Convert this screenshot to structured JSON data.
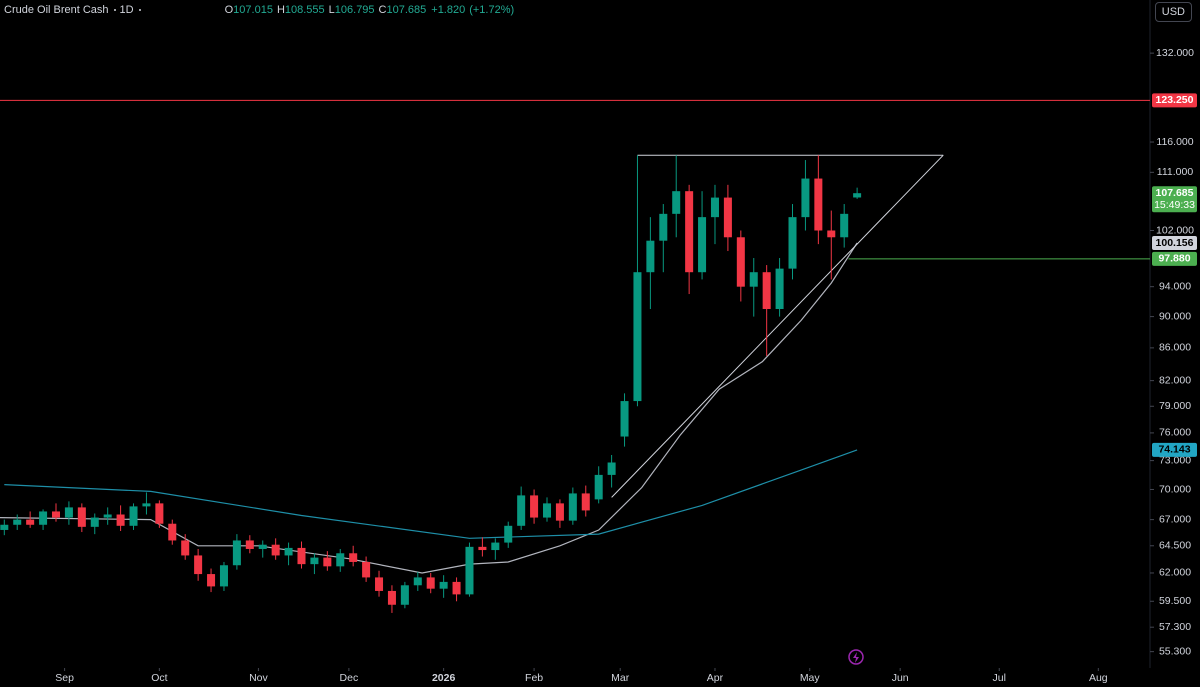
{
  "chart_data": {
    "type": "candlestick",
    "symbol": "Crude Oil Brent Cash",
    "interval": "1D",
    "currency": "USD",
    "ohlc_header": [
      {
        "key": "O",
        "value": 107.015
      },
      {
        "key": "H",
        "value": 108.555
      },
      {
        "key": "L",
        "value": 106.795
      },
      {
        "key": "C",
        "value": 107.685
      }
    ],
    "change": {
      "value": 1.82,
      "label": "+1.820"
    },
    "change_percent": {
      "value": 1.72,
      "label": "(+1.72%)"
    },
    "log_scale": true,
    "xlim": [
      -15,
      252
    ],
    "xticks": [
      {
        "value": 0,
        "label": "Sep"
      },
      {
        "value": 22,
        "label": "Oct"
      },
      {
        "value": 45,
        "label": "Nov"
      },
      {
        "value": 66,
        "label": "Dec"
      },
      {
        "value": 88,
        "label": "2026"
      },
      {
        "value": 109,
        "label": "Feb"
      },
      {
        "value": 129,
        "label": "Mar"
      },
      {
        "value": 151,
        "label": "Apr"
      },
      {
        "value": 173,
        "label": "May"
      },
      {
        "value": 194,
        "label": "Jun"
      },
      {
        "value": 217,
        "label": "Jul"
      },
      {
        "value": 240,
        "label": "Aug"
      }
    ],
    "ylim": [
      54,
      142.6
    ],
    "yticks": [
      {
        "value": 55.3,
        "label": "55.300"
      },
      {
        "value": 57.3,
        "label": "57.300"
      },
      {
        "value": 59.5,
        "label": "59.500"
      },
      {
        "value": 62,
        "label": "62.000"
      },
      {
        "value": 64.5,
        "label": "64.500"
      },
      {
        "value": 67,
        "label": "67.000"
      },
      {
        "value": 70,
        "label": "70.000"
      },
      {
        "value": 73,
        "label": "73.000"
      },
      {
        "value": 76,
        "label": "76.000"
      },
      {
        "value": 79,
        "label": "79.000"
      },
      {
        "value": 82,
        "label": "82.000"
      },
      {
        "value": 86,
        "label": "86.000"
      },
      {
        "value": 90,
        "label": "90.000"
      },
      {
        "value": 94,
        "label": "94.000"
      },
      {
        "value": 102,
        "label": "102.000"
      },
      {
        "value": 111,
        "label": "111.000"
      },
      {
        "value": 116,
        "label": "116.000"
      },
      {
        "value": 132,
        "label": "132.000"
      }
    ],
    "up_color": "#089981",
    "down_color": "#f23645",
    "candles": {
      "x": [
        -14,
        -11,
        -8,
        -5,
        -2,
        1,
        4,
        7,
        10,
        13,
        16,
        19,
        22,
        25,
        28,
        31,
        34,
        37,
        40,
        43,
        46,
        49,
        52,
        55,
        58,
        61,
        64,
        67,
        70,
        73,
        76,
        79,
        82,
        85,
        88,
        91,
        94,
        97,
        100,
        103,
        106,
        109,
        112,
        115,
        118,
        121,
        124,
        127,
        130,
        133,
        136,
        139,
        142,
        145,
        148,
        151,
        154,
        157,
        160,
        163,
        166,
        169,
        172,
        175,
        178,
        181,
        184
      ],
      "ohlc": [
        [
          66,
          67,
          65.5,
          66.5
        ],
        [
          66.5,
          67.5,
          66,
          67
        ],
        [
          67,
          67.8,
          66.2,
          66.5
        ],
        [
          66.5,
          68,
          66,
          67.8
        ],
        [
          67.8,
          68.6,
          66.8,
          67.2
        ],
        [
          67.2,
          68.8,
          66.5,
          68.2
        ],
        [
          68.2,
          68.6,
          65.8,
          66.3
        ],
        [
          66.3,
          67.6,
          65.6,
          67.2
        ],
        [
          67.2,
          68.2,
          66.5,
          67.5
        ],
        [
          67.5,
          68.4,
          65.9,
          66.4
        ],
        [
          66.4,
          68.6,
          66,
          68.3
        ],
        [
          68.3,
          69.7,
          67.5,
          68.6
        ],
        [
          68.6,
          68.9,
          66.2,
          66.6
        ],
        [
          66.6,
          67,
          64.6,
          65
        ],
        [
          65,
          65.6,
          63.2,
          63.6
        ],
        [
          63.6,
          64.2,
          61.3,
          61.9
        ],
        [
          61.9,
          62.4,
          60.3,
          60.8
        ],
        [
          60.8,
          63,
          60.4,
          62.7
        ],
        [
          62.7,
          65.6,
          62.3,
          65
        ],
        [
          65,
          65.5,
          63.8,
          64.2
        ],
        [
          64.2,
          65,
          63.4,
          64.6
        ],
        [
          64.6,
          65.2,
          63.2,
          63.6
        ],
        [
          63.6,
          64.8,
          62.7,
          64.3
        ],
        [
          64.3,
          64.9,
          62.4,
          62.8
        ],
        [
          62.8,
          63.8,
          61.9,
          63.4
        ],
        [
          63.4,
          64,
          62.2,
          62.6
        ],
        [
          62.6,
          64.2,
          62.1,
          63.8
        ],
        [
          63.8,
          64.5,
          62.6,
          63
        ],
        [
          63,
          63.5,
          61.2,
          61.6
        ],
        [
          61.6,
          62.2,
          59.9,
          60.4
        ],
        [
          60.4,
          60.9,
          58.5,
          59.2
        ],
        [
          59.2,
          61.2,
          58.9,
          60.9
        ],
        [
          60.9,
          62.1,
          60.4,
          61.6
        ],
        [
          61.6,
          62,
          60.2,
          60.6
        ],
        [
          60.6,
          61.8,
          59.8,
          61.2
        ],
        [
          61.2,
          61.6,
          59.5,
          60.1
        ],
        [
          60.1,
          64.8,
          59.9,
          64.4
        ],
        [
          64.4,
          65.3,
          63.5,
          64.1
        ],
        [
          64.1,
          65.2,
          63.2,
          64.8
        ],
        [
          64.8,
          66.8,
          64.3,
          66.4
        ],
        [
          66.4,
          70.3,
          66,
          69.4
        ],
        [
          69.4,
          70,
          66.6,
          67.2
        ],
        [
          67.2,
          69.2,
          66.8,
          68.6
        ],
        [
          68.6,
          69,
          66.2,
          66.9
        ],
        [
          66.9,
          70.2,
          66.5,
          69.6
        ],
        [
          69.6,
          70.4,
          67.3,
          67.9
        ],
        [
          69,
          72.4,
          68.6,
          71.5
        ],
        [
          71.5,
          73.6,
          70.2,
          72.8
        ],
        [
          75.6,
          80.5,
          74.5,
          79.6
        ],
        [
          79.6,
          113.8,
          79,
          96
        ],
        [
          96,
          104,
          91,
          100.5
        ],
        [
          100.5,
          106,
          96,
          104.5
        ],
        [
          104.5,
          113.8,
          101,
          108
        ],
        [
          108,
          109,
          93,
          96
        ],
        [
          96,
          108,
          95,
          104
        ],
        [
          104,
          109,
          100,
          107
        ],
        [
          107,
          109,
          99,
          101
        ],
        [
          101,
          102,
          92,
          94
        ],
        [
          94,
          98,
          90,
          96
        ],
        [
          96,
          97,
          85,
          91
        ],
        [
          91,
          98,
          90,
          96.5
        ],
        [
          96.5,
          106,
          95,
          104
        ],
        [
          104,
          113,
          102,
          110
        ],
        [
          110,
          113.8,
          100,
          102
        ],
        [
          102,
          105,
          95,
          101
        ],
        [
          101,
          106,
          99.5,
          104.5
        ],
        [
          107.015,
          108.555,
          106.795,
          107.685
        ]
      ]
    },
    "series": [
      {
        "color": "#b2b5be",
        "x": [
          -15,
          20,
          31,
          45,
          66,
          83,
          94,
          103,
          115,
          124,
          134,
          143,
          152,
          162,
          171,
          178,
          184
        ],
        "values": [
          67.2,
          67,
          64.5,
          64.5,
          63.3,
          62,
          62.8,
          63,
          64.5,
          66,
          70.2,
          75.8,
          81,
          84.3,
          89.5,
          94.5,
          100.156
        ]
      },
      {
        "color": "#1e8fa8",
        "x": [
          -14,
          20,
          55,
          94,
          124,
          148,
          171,
          184
        ],
        "values": [
          70.5,
          69.8,
          67.4,
          65.2,
          65.6,
          68.4,
          72,
          74.143
        ]
      }
    ],
    "hlines": [
      {
        "value": 123.25,
        "color": "#f23645",
        "from": -15
      },
      {
        "value": 97.88,
        "color": "#4caf50",
        "from": 182
      }
    ],
    "trendlines": [
      {
        "color": "#d1d4dc",
        "points": [
          [
            133,
            113.8
          ],
          [
            204,
            113.8
          ]
        ]
      },
      {
        "color": "#d1d4dc",
        "points": [
          [
            127,
            69.2
          ],
          [
            204,
            113.8
          ]
        ]
      }
    ],
    "price_labels": [
      {
        "value": 123.25,
        "label": "123.250",
        "bg": "#f23645",
        "fg": "#ffffff"
      },
      {
        "value": 107.685,
        "label": "107.685",
        "countdown": "15:49:33",
        "bg": "#4caf50",
        "fg": "#ffffff"
      },
      {
        "value": 100.156,
        "label": "100.156",
        "bg": "#d1d4dc",
        "fg": "#000000"
      },
      {
        "value": 97.88,
        "label": "97.880",
        "bg": "#4caf50",
        "fg": "#ffffff"
      },
      {
        "value": 74.143,
        "label": "74.143",
        "bg": "#22a6c4",
        "fg": "#000000"
      }
    ]
  }
}
